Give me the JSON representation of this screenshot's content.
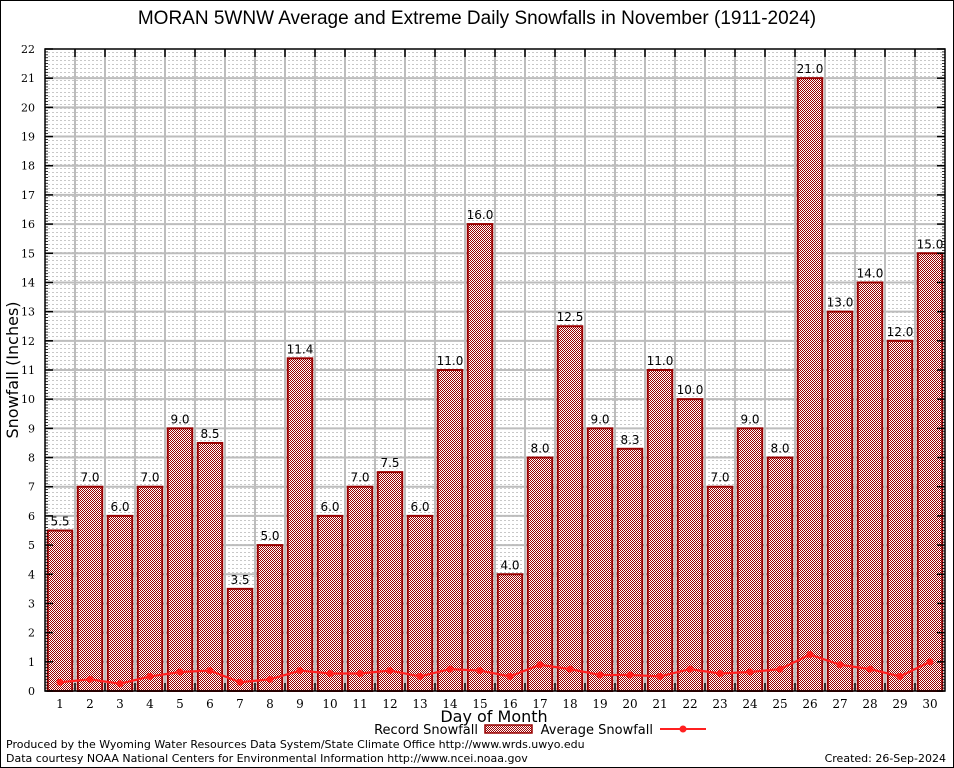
{
  "chart_data": {
    "type": "bar",
    "title": "MORAN 5WNW Average and Extreme Daily Snowfalls in November (1911-2024)",
    "xlabel": "Day of Month",
    "ylabel": "Snowfall (Inches)",
    "ylim": [
      0,
      22
    ],
    "yticks": [
      0,
      1,
      2,
      3,
      4,
      5,
      6,
      7,
      8,
      9,
      10,
      11,
      12,
      13,
      14,
      15,
      16,
      17,
      18,
      19,
      20,
      21,
      22
    ],
    "grid": true,
    "categories": [
      "1",
      "2",
      "3",
      "4",
      "5",
      "6",
      "7",
      "8",
      "9",
      "10",
      "11",
      "12",
      "13",
      "14",
      "15",
      "16",
      "17",
      "18",
      "19",
      "20",
      "21",
      "22",
      "23",
      "24",
      "25",
      "26",
      "27",
      "28",
      "29",
      "30"
    ],
    "series": [
      {
        "name": "Record Snowfall",
        "type": "bar",
        "color": "#990000",
        "values": [
          5.5,
          7.0,
          6.0,
          7.0,
          9.0,
          8.5,
          3.5,
          5.0,
          11.4,
          6.0,
          7.0,
          7.5,
          6.0,
          11.0,
          16.0,
          4.0,
          8.0,
          12.5,
          9.0,
          8.3,
          11.0,
          10.0,
          7.0,
          9.0,
          8.0,
          21.0,
          13.0,
          14.0,
          12.0,
          15.0
        ],
        "labels": [
          "5.5",
          "7.0",
          "6.0",
          "7.0",
          "9.0",
          "8.5",
          "3.5",
          "5.0",
          "11.4",
          "6.0",
          "7.0",
          "7.5",
          "6.0",
          "11.0",
          "16.0",
          "4.0",
          "8.0",
          "12.5",
          "9.0",
          "8.3",
          "11.0",
          "10.0",
          "7.0",
          "9.0",
          "8.0",
          "21.0",
          "13.0",
          "14.0",
          "12.0",
          "15.0"
        ]
      },
      {
        "name": "Average Snowfall",
        "type": "line",
        "color": "#ff2020",
        "values": [
          0.3,
          0.4,
          0.25,
          0.5,
          0.65,
          0.7,
          0.3,
          0.4,
          0.7,
          0.6,
          0.6,
          0.7,
          0.5,
          0.75,
          0.7,
          0.5,
          0.9,
          0.75,
          0.55,
          0.55,
          0.5,
          0.75,
          0.6,
          0.65,
          0.75,
          1.25,
          0.9,
          0.75,
          0.5,
          1.0
        ]
      }
    ],
    "legend": "bottom-center"
  },
  "footer": {
    "produced_by": "Produced by the Wyoming Water Resources Data System/State Climate Office http://www.wrds.uwyo.edu",
    "data_courtesy": "Data courtesy NOAA National Centers for Environmental Information http://www.ncei.noaa.gov",
    "created": "Created: 26-Sep-2024"
  }
}
